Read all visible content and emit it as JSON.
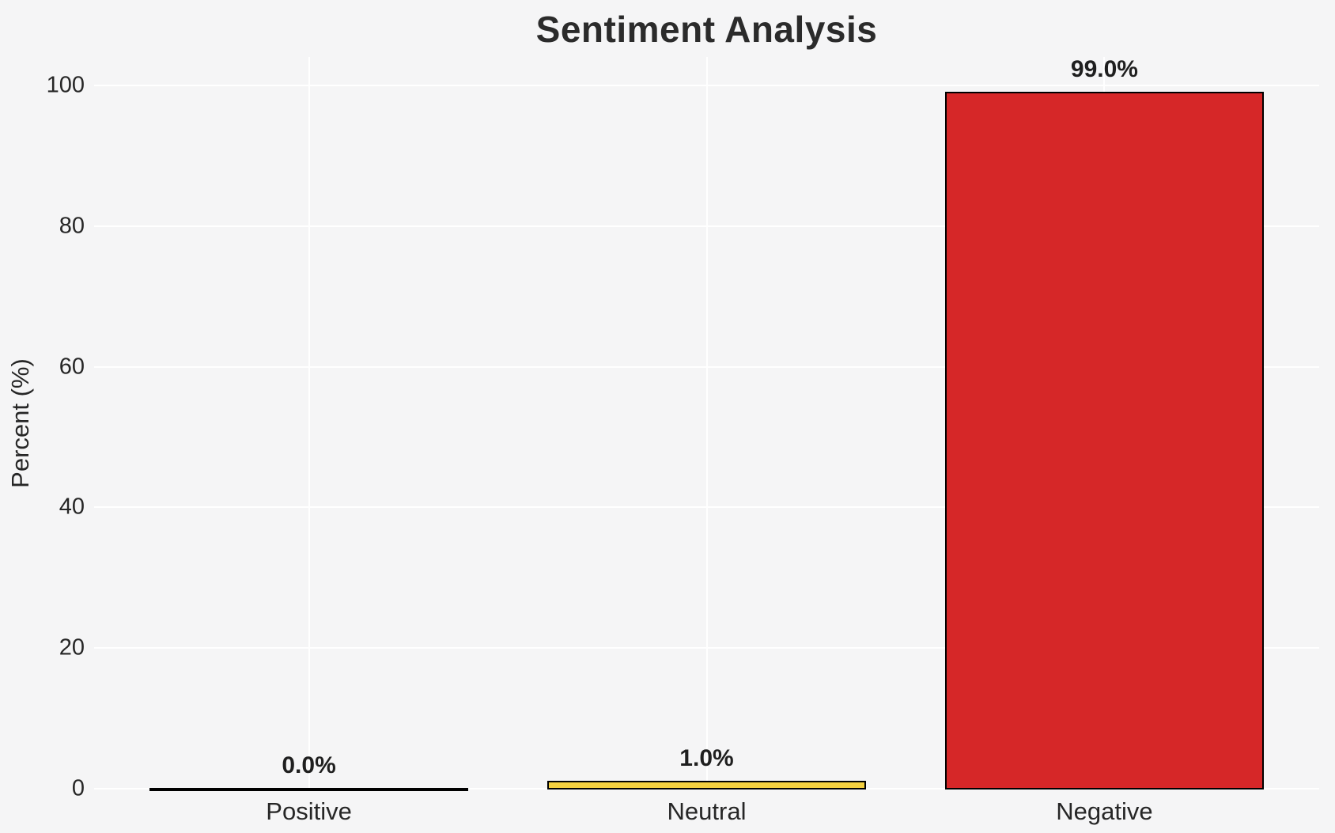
{
  "title": "Sentiment Analysis",
  "chart_data": {
    "type": "bar",
    "title": "Sentiment Analysis",
    "xlabel": "",
    "ylabel": "Percent (%)",
    "categories": [
      "Positive",
      "Neutral",
      "Negative"
    ],
    "values": [
      0.0,
      1.0,
      99.0
    ],
    "bar_labels": [
      "0.0%",
      "1.0%",
      "99.0%"
    ],
    "bar_colors": [
      null,
      "#f4d03f",
      "#d62728"
    ],
    "bar_edge_color": "#000000",
    "yticks": [
      0,
      20,
      40,
      60,
      80,
      100
    ],
    "ylim": [
      0,
      104
    ],
    "grid": true,
    "grid_color": "#ffffff",
    "background_color": "#f5f5f6",
    "legend": null
  }
}
